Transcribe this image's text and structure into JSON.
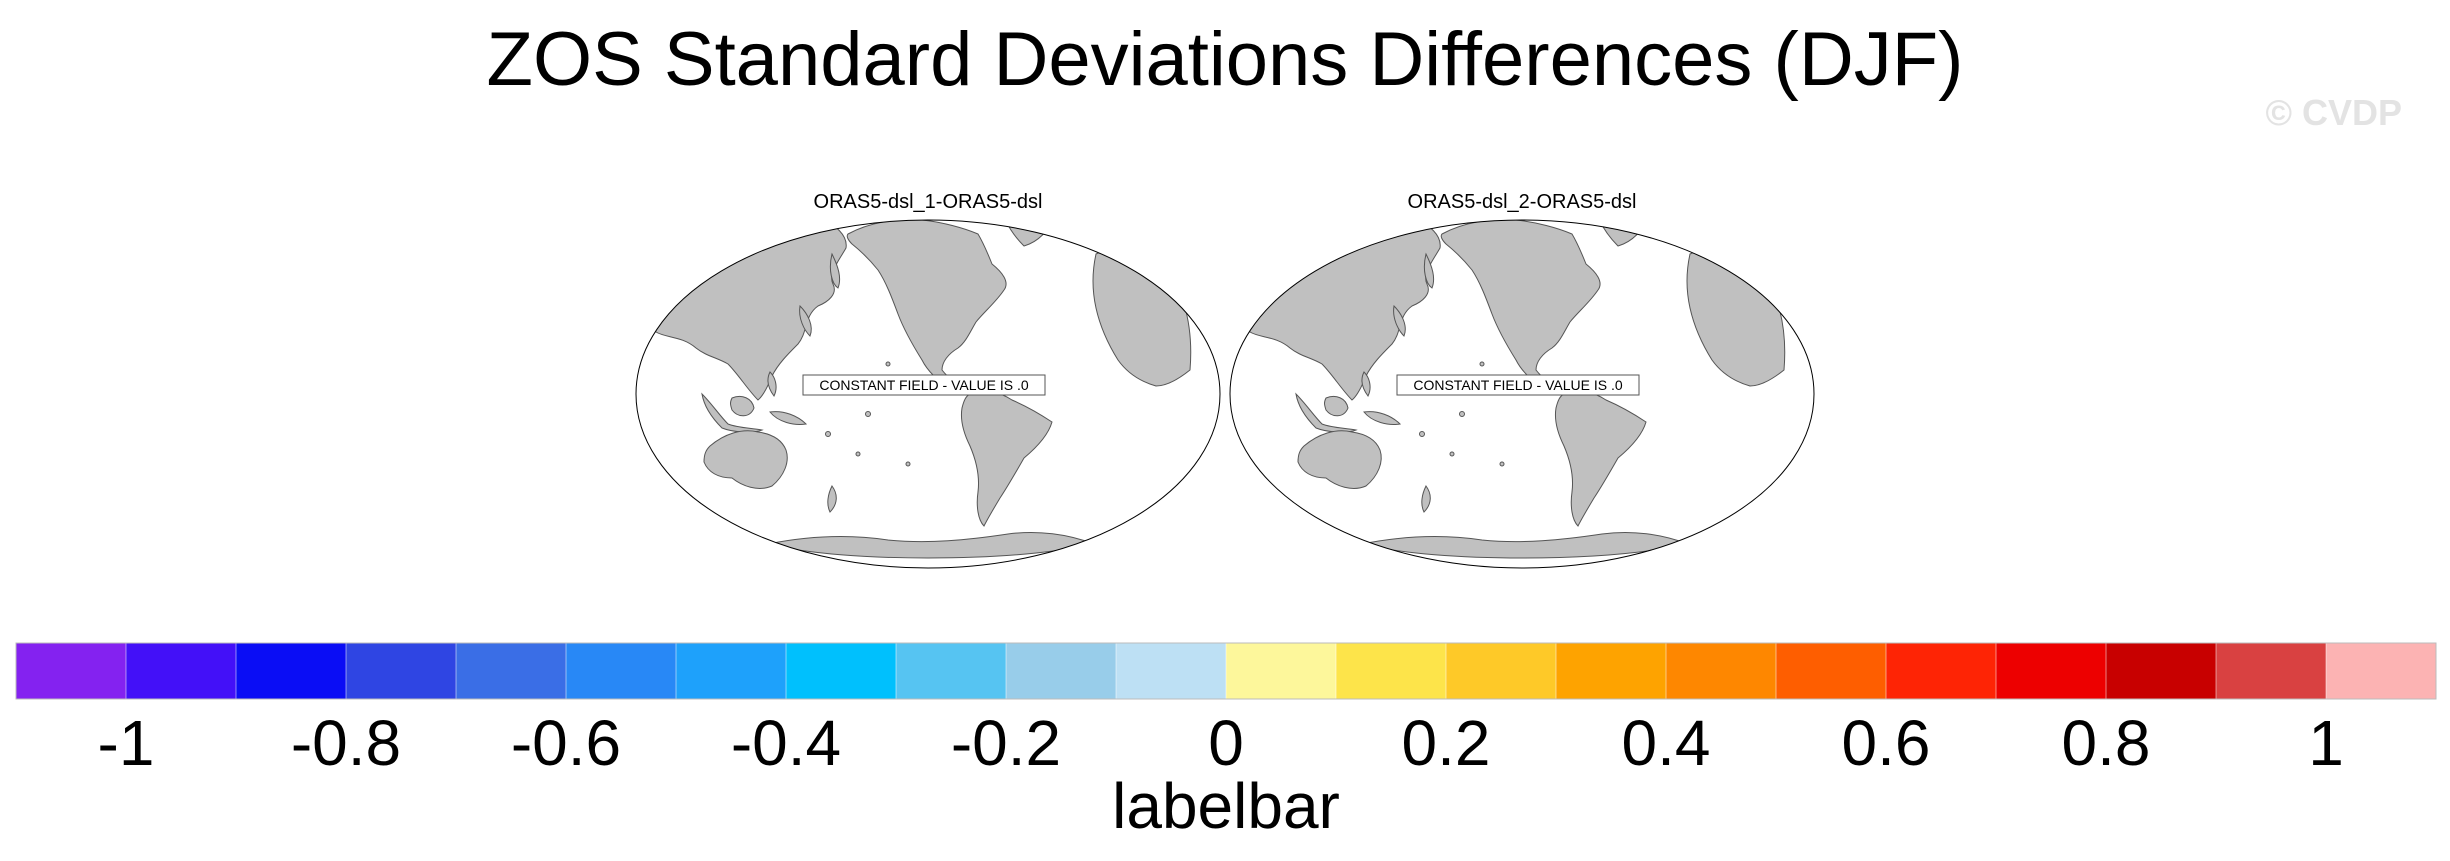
{
  "title": "ZOS Standard Deviations Differences (DJF)",
  "watermark": "© CVDP",
  "panels": [
    {
      "title": "ORAS5-dsl_1-ORAS5-dsl",
      "message": "CONSTANT FIELD - VALUE IS .0"
    },
    {
      "title": "ORAS5-dsl_2-ORAS5-dsl",
      "message": "CONSTANT FIELD - VALUE IS .0"
    }
  ],
  "colors": {
    "land": "#c0c0c0",
    "ocean": "#ffffff",
    "coast": "#555555"
  },
  "labelbar": {
    "label": "labelbar",
    "range": [
      -1.1,
      1.1
    ],
    "colors": [
      "#8422f0",
      "#4310f8",
      "#0a0df5",
      "#2f45e3",
      "#3a6ee6",
      "#2888f6",
      "#1ea1fb",
      "#00c0fd",
      "#56c4f2",
      "#98cdea",
      "#bde0f4",
      "#fdf79b",
      "#fde44a",
      "#fec928",
      "#fea300",
      "#fe8700",
      "#fe5e00",
      "#fe2405",
      "#ed0000",
      "#c80000",
      "#d94141",
      "#fcb3b3"
    ],
    "ticks": [
      "-1",
      "-0.8",
      "-0.6",
      "-0.4",
      "-0.2",
      "0",
      "0.2",
      "0.4",
      "0.6",
      "0.8",
      "1"
    ]
  }
}
